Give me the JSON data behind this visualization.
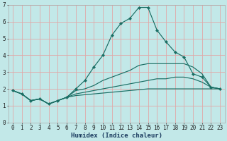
{
  "xlabel": "Humidex (Indice chaleur)",
  "ylabel": "",
  "xlim": [
    -0.5,
    23.5
  ],
  "ylim": [
    0,
    7
  ],
  "bg_color": "#c2e8e8",
  "grid_color": "#e0a8a8",
  "line_color": "#1a6e64",
  "lines": [
    {
      "x": [
        0,
        1,
        2,
        3,
        4,
        5,
        6,
        7,
        8,
        9,
        10,
        11,
        12,
        13,
        14,
        15,
        16,
        17,
        18,
        19,
        20,
        21,
        22,
        23
      ],
      "y": [
        1.9,
        1.7,
        1.3,
        1.4,
        1.1,
        1.3,
        1.5,
        2.0,
        2.5,
        3.3,
        4.0,
        5.2,
        5.9,
        6.2,
        6.85,
        6.85,
        5.5,
        4.8,
        4.2,
        3.9,
        2.9,
        2.7,
        2.1,
        2.0
      ],
      "marker": true
    },
    {
      "x": [
        0,
        1,
        2,
        3,
        4,
        5,
        6,
        7,
        8,
        9,
        10,
        11,
        12,
        13,
        14,
        15,
        16,
        17,
        18,
        19,
        20,
        21,
        22,
        23
      ],
      "y": [
        1.9,
        1.7,
        1.3,
        1.4,
        1.1,
        1.3,
        1.5,
        1.9,
        2.0,
        2.2,
        2.5,
        2.7,
        2.9,
        3.1,
        3.4,
        3.5,
        3.5,
        3.5,
        3.5,
        3.5,
        3.3,
        2.9,
        2.1,
        2.0
      ],
      "marker": false
    },
    {
      "x": [
        0,
        1,
        2,
        3,
        4,
        5,
        6,
        7,
        8,
        9,
        10,
        11,
        12,
        13,
        14,
        15,
        16,
        17,
        18,
        19,
        20,
        21,
        22,
        23
      ],
      "y": [
        1.9,
        1.7,
        1.3,
        1.4,
        1.1,
        1.3,
        1.5,
        1.7,
        1.8,
        1.9,
        2.0,
        2.1,
        2.2,
        2.3,
        2.4,
        2.5,
        2.6,
        2.6,
        2.7,
        2.7,
        2.6,
        2.4,
        2.1,
        2.0
      ],
      "marker": false
    },
    {
      "x": [
        0,
        1,
        2,
        3,
        4,
        5,
        6,
        7,
        8,
        9,
        10,
        11,
        12,
        13,
        14,
        15,
        16,
        17,
        18,
        19,
        20,
        21,
        22,
        23
      ],
      "y": [
        1.9,
        1.7,
        1.3,
        1.4,
        1.1,
        1.3,
        1.5,
        1.6,
        1.65,
        1.7,
        1.75,
        1.8,
        1.85,
        1.9,
        1.95,
        2.0,
        2.0,
        2.0,
        2.0,
        2.0,
        2.0,
        2.0,
        2.0,
        2.0
      ],
      "marker": false
    }
  ],
  "xticks": [
    0,
    1,
    2,
    3,
    4,
    5,
    6,
    7,
    8,
    9,
    10,
    11,
    12,
    13,
    14,
    15,
    16,
    17,
    18,
    19,
    20,
    21,
    22,
    23
  ],
  "yticks": [
    0,
    1,
    2,
    3,
    4,
    5,
    6,
    7
  ],
  "tick_fontsize": 5.5,
  "xlabel_fontsize": 6.5
}
